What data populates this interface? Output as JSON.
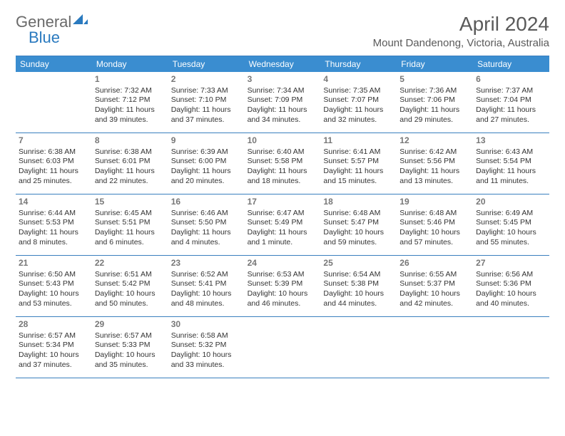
{
  "logo": {
    "text1": "General",
    "text2": "Blue"
  },
  "title": "April 2024",
  "location": "Mount Dandenong, Victoria, Australia",
  "colors": {
    "header_bg": "#3a8dd0",
    "header_text": "#ffffff",
    "border": "#3a7fbf",
    "day_num": "#777777",
    "body_text": "#333333",
    "title_text": "#5a5a5a",
    "logo_gray": "#6a6a6a",
    "logo_blue": "#2a7abf"
  },
  "day_names": [
    "Sunday",
    "Monday",
    "Tuesday",
    "Wednesday",
    "Thursday",
    "Friday",
    "Saturday"
  ],
  "first_weekday_index": 1,
  "days": [
    {
      "n": 1,
      "sunrise": "7:32 AM",
      "sunset": "7:12 PM",
      "daylight": "11 hours and 39 minutes."
    },
    {
      "n": 2,
      "sunrise": "7:33 AM",
      "sunset": "7:10 PM",
      "daylight": "11 hours and 37 minutes."
    },
    {
      "n": 3,
      "sunrise": "7:34 AM",
      "sunset": "7:09 PM",
      "daylight": "11 hours and 34 minutes."
    },
    {
      "n": 4,
      "sunrise": "7:35 AM",
      "sunset": "7:07 PM",
      "daylight": "11 hours and 32 minutes."
    },
    {
      "n": 5,
      "sunrise": "7:36 AM",
      "sunset": "7:06 PM",
      "daylight": "11 hours and 29 minutes."
    },
    {
      "n": 6,
      "sunrise": "7:37 AM",
      "sunset": "7:04 PM",
      "daylight": "11 hours and 27 minutes."
    },
    {
      "n": 7,
      "sunrise": "6:38 AM",
      "sunset": "6:03 PM",
      "daylight": "11 hours and 25 minutes."
    },
    {
      "n": 8,
      "sunrise": "6:38 AM",
      "sunset": "6:01 PM",
      "daylight": "11 hours and 22 minutes."
    },
    {
      "n": 9,
      "sunrise": "6:39 AM",
      "sunset": "6:00 PM",
      "daylight": "11 hours and 20 minutes."
    },
    {
      "n": 10,
      "sunrise": "6:40 AM",
      "sunset": "5:58 PM",
      "daylight": "11 hours and 18 minutes."
    },
    {
      "n": 11,
      "sunrise": "6:41 AM",
      "sunset": "5:57 PM",
      "daylight": "11 hours and 15 minutes."
    },
    {
      "n": 12,
      "sunrise": "6:42 AM",
      "sunset": "5:56 PM",
      "daylight": "11 hours and 13 minutes."
    },
    {
      "n": 13,
      "sunrise": "6:43 AM",
      "sunset": "5:54 PM",
      "daylight": "11 hours and 11 minutes."
    },
    {
      "n": 14,
      "sunrise": "6:44 AM",
      "sunset": "5:53 PM",
      "daylight": "11 hours and 8 minutes."
    },
    {
      "n": 15,
      "sunrise": "6:45 AM",
      "sunset": "5:51 PM",
      "daylight": "11 hours and 6 minutes."
    },
    {
      "n": 16,
      "sunrise": "6:46 AM",
      "sunset": "5:50 PM",
      "daylight": "11 hours and 4 minutes."
    },
    {
      "n": 17,
      "sunrise": "6:47 AM",
      "sunset": "5:49 PM",
      "daylight": "11 hours and 1 minute."
    },
    {
      "n": 18,
      "sunrise": "6:48 AM",
      "sunset": "5:47 PM",
      "daylight": "10 hours and 59 minutes."
    },
    {
      "n": 19,
      "sunrise": "6:48 AM",
      "sunset": "5:46 PM",
      "daylight": "10 hours and 57 minutes."
    },
    {
      "n": 20,
      "sunrise": "6:49 AM",
      "sunset": "5:45 PM",
      "daylight": "10 hours and 55 minutes."
    },
    {
      "n": 21,
      "sunrise": "6:50 AM",
      "sunset": "5:43 PM",
      "daylight": "10 hours and 53 minutes."
    },
    {
      "n": 22,
      "sunrise": "6:51 AM",
      "sunset": "5:42 PM",
      "daylight": "10 hours and 50 minutes."
    },
    {
      "n": 23,
      "sunrise": "6:52 AM",
      "sunset": "5:41 PM",
      "daylight": "10 hours and 48 minutes."
    },
    {
      "n": 24,
      "sunrise": "6:53 AM",
      "sunset": "5:39 PM",
      "daylight": "10 hours and 46 minutes."
    },
    {
      "n": 25,
      "sunrise": "6:54 AM",
      "sunset": "5:38 PM",
      "daylight": "10 hours and 44 minutes."
    },
    {
      "n": 26,
      "sunrise": "6:55 AM",
      "sunset": "5:37 PM",
      "daylight": "10 hours and 42 minutes."
    },
    {
      "n": 27,
      "sunrise": "6:56 AM",
      "sunset": "5:36 PM",
      "daylight": "10 hours and 40 minutes."
    },
    {
      "n": 28,
      "sunrise": "6:57 AM",
      "sunset": "5:34 PM",
      "daylight": "10 hours and 37 minutes."
    },
    {
      "n": 29,
      "sunrise": "6:57 AM",
      "sunset": "5:33 PM",
      "daylight": "10 hours and 35 minutes."
    },
    {
      "n": 30,
      "sunrise": "6:58 AM",
      "sunset": "5:32 PM",
      "daylight": "10 hours and 33 minutes."
    }
  ],
  "labels": {
    "sunrise": "Sunrise:",
    "sunset": "Sunset:",
    "daylight": "Daylight:"
  }
}
